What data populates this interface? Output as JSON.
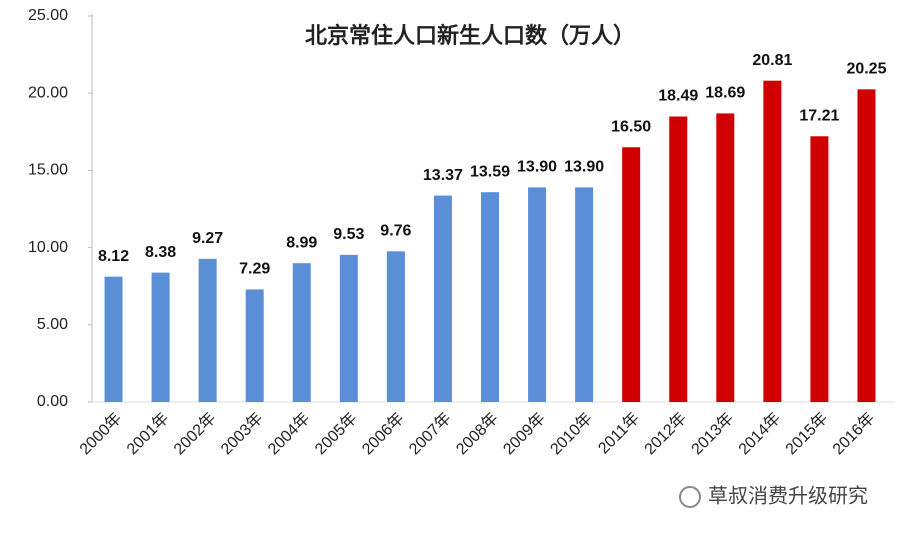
{
  "chart_data": {
    "type": "bar",
    "title": "北京常住人口新生人口数（万人）",
    "categories": [
      "2000年",
      "2001年",
      "2002年",
      "2003年",
      "2004年",
      "2005年",
      "2006年",
      "2007年",
      "2008年",
      "2009年",
      "2010年",
      "2011年",
      "2012年",
      "2013年",
      "2014年",
      "2015年",
      "2016年"
    ],
    "values": [
      8.12,
      8.38,
      9.27,
      7.29,
      8.99,
      9.53,
      9.76,
      13.37,
      13.59,
      13.9,
      13.9,
      16.5,
      18.49,
      18.69,
      20.81,
      17.21,
      20.25
    ],
    "value_labels": [
      "8.12",
      "8.38",
      "9.27",
      "7.29",
      "8.99",
      "9.53",
      "9.76",
      "13.37",
      "13.59",
      "13.90",
      "13.90",
      "16.50",
      "18.49",
      "18.69",
      "20.81",
      "17.21",
      "20.25"
    ],
    "colors": [
      "#5a8fd8",
      "#5a8fd8",
      "#5a8fd8",
      "#5a8fd8",
      "#5a8fd8",
      "#5a8fd8",
      "#5a8fd8",
      "#5a8fd8",
      "#5a8fd8",
      "#5a8fd8",
      "#5a8fd8",
      "#d00000",
      "#d00000",
      "#d00000",
      "#d00000",
      "#d00000",
      "#d00000"
    ],
    "ylim": [
      0,
      25
    ],
    "yticks": [
      {
        "value": 0,
        "label": "0.00"
      },
      {
        "value": 5,
        "label": "5.00"
      },
      {
        "value": 10,
        "label": "10.00"
      },
      {
        "value": 15,
        "label": "15.00"
      },
      {
        "value": 20,
        "label": "20.00"
      },
      {
        "value": 25,
        "label": "25.00"
      }
    ],
    "grid": false,
    "watermark": "草叔消费升级研究"
  }
}
